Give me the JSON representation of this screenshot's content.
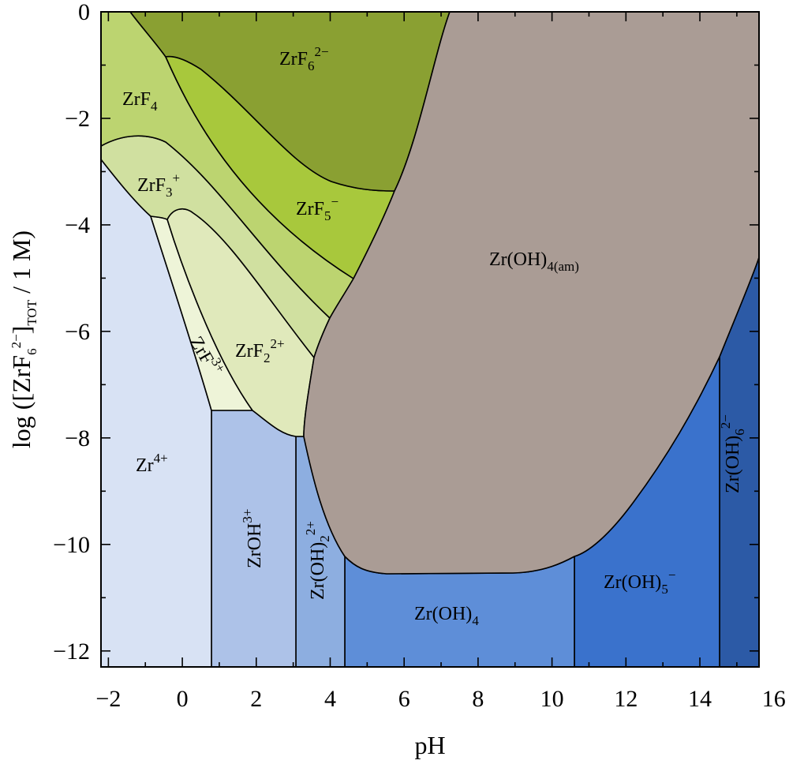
{
  "chart_data": {
    "type": "predominance-area-diagram",
    "xlabel": "pH",
    "ylabel": {
      "prefix": "log ([ZrF",
      "sub1": "6",
      "sup1": "2−",
      "mid": "]",
      "sub2": "TOT",
      "suffix": " / 1 M)"
    },
    "xlim": [
      -2.2,
      15.6
    ],
    "ylim": [
      -12.3,
      0
    ],
    "x_ticks": [
      "−2",
      "0",
      "2",
      "4",
      "6",
      "8",
      "10",
      "12",
      "14",
      "16"
    ],
    "x_tick_values": [
      -2,
      0,
      2,
      4,
      6,
      8,
      10,
      12,
      14,
      16
    ],
    "y_ticks": [
      "0",
      "−2",
      "−4",
      "−6",
      "−8",
      "−10",
      "−12"
    ],
    "y_tick_values": [
      0,
      -2,
      -4,
      -6,
      -8,
      -10,
      -12
    ],
    "colors": {
      "ZrF6_2-": "#8aa032",
      "ZrF5-": "#a8c83c",
      "ZrF4": "#bcd470",
      "ZrF3+": "#d0e0a0",
      "ZrF2_2+": "#e0e9bb",
      "ZrF3+_small": "#eef4d8",
      "Zr4+": "#d8e2f4",
      "ZrOH3+": "#adc2e8",
      "Zr(OH)2_2+": "#8daee0",
      "Zr(OH)4": "#5e8ed8",
      "Zr(OH)5-": "#3a72cc",
      "Zr(OH)6_2-": "#2c5aa6",
      "Zr(OH)4(am)": "#aa9c95"
    },
    "regions": [
      {
        "id": "Zr(OH)6_2-",
        "label": {
          "base": "Zr(OH)",
          "sub": "6",
          "sup": "2−"
        },
        "vertical": true
      },
      {
        "id": "Zr(OH)5-",
        "label": {
          "base": "Zr(OH)",
          "sub": "5",
          "sup": "−"
        }
      },
      {
        "id": "Zr(OH)4",
        "label": {
          "base": "Zr(OH)",
          "sub": "4",
          "sup": ""
        }
      },
      {
        "id": "Zr(OH)2_2+",
        "label": {
          "base": "Zr(OH)",
          "sub": "2",
          "sup": "2+"
        },
        "vertical": true
      },
      {
        "id": "ZrOH3+",
        "label": {
          "base": "ZrOH",
          "sub": "",
          "sup": "3+"
        },
        "vertical": true
      },
      {
        "id": "Zr4+",
        "label": {
          "base": "Zr",
          "sub": "",
          "sup": "4+"
        }
      },
      {
        "id": "ZrF3+_small",
        "label": {
          "base": "ZrF",
          "sub": "",
          "sup": "3+"
        },
        "rotated": true
      },
      {
        "id": "ZrF2_2+",
        "label": {
          "base": "ZrF",
          "sub": "2",
          "sup": "2+"
        }
      },
      {
        "id": "ZrF3+",
        "label": {
          "base": "ZrF",
          "sub": "3",
          "sup": "+"
        }
      },
      {
        "id": "ZrF4",
        "label": {
          "base": "ZrF",
          "sub": "4",
          "sup": ""
        }
      },
      {
        "id": "ZrF5-",
        "label": {
          "base": "ZrF",
          "sub": "5",
          "sup": "−"
        }
      },
      {
        "id": "ZrF6_2-",
        "label": {
          "base": "ZrF",
          "sub": "6",
          "sup": "2−"
        }
      },
      {
        "id": "Zr(OH)4(am)",
        "label": {
          "base": "Zr(OH)",
          "sub": "4(am)",
          "sup": ""
        }
      }
    ]
  }
}
